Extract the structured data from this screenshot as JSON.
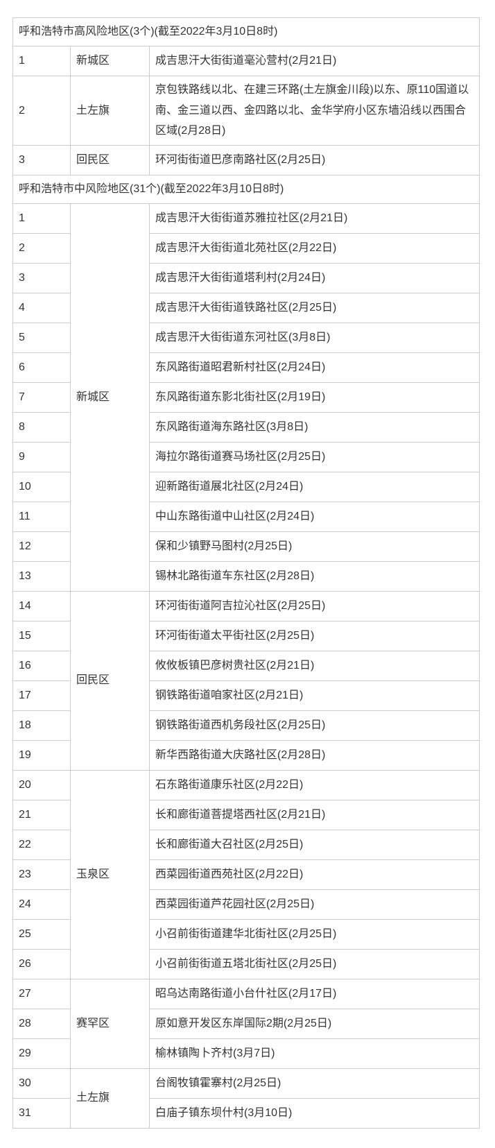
{
  "page": {
    "background": "#ffffff"
  },
  "table": {
    "border_color": "#cccccc",
    "text_color": "#333333",
    "sections": [
      {
        "header": "呼和浩特市高风险地区(3个)(截至2022年3月10日8时)",
        "groups": [
          {
            "district": "新城区",
            "rows": [
              {
                "num": "1",
                "area": "成吉思汗大街街道毫沁营村(2月21日)"
              }
            ]
          },
          {
            "district": "土左旗",
            "rows": [
              {
                "num": "2",
                "area": "京包铁路线以北、在建三环路(土左旗金川段)以东、原110国道以南、金三道以西、金四路以北、金华学府小区东墙沿线以西围合区域(2月28日)"
              }
            ]
          },
          {
            "district": "回民区",
            "rows": [
              {
                "num": "3",
                "area": "环河街街道巴彦南路社区(2月25日)"
              }
            ]
          }
        ]
      },
      {
        "header": "呼和浩特市中风险地区(31个)(截至2022年3月10日8时)",
        "groups": [
          {
            "district": "新城区",
            "rows": [
              {
                "num": "1",
                "area": "成吉思汗大街街道苏雅拉社区(2月21日)"
              },
              {
                "num": "2",
                "area": "成吉思汗大街街道北苑社区(2月22日)"
              },
              {
                "num": "3",
                "area": "成吉思汗大街街道塔利村(2月24日)"
              },
              {
                "num": "4",
                "area": "成吉思汗大街街道铁路社区(2月25日)"
              },
              {
                "num": "5",
                "area": "成吉思汗大街街道东河社区(3月8日)"
              },
              {
                "num": "6",
                "area": "东风路街道昭君新村社区(2月24日)"
              },
              {
                "num": "7",
                "area": "东风路街道东影北街社区(2月19日)"
              },
              {
                "num": "8",
                "area": "东风路街道海东路社区(3月8日)"
              },
              {
                "num": "9",
                "area": "海拉尔路街道赛马场社区(2月25日)"
              },
              {
                "num": "10",
                "area": "迎新路街道展北社区(2月24日)"
              },
              {
                "num": "11",
                "area": "中山东路街道中山社区(2月24日)"
              },
              {
                "num": "12",
                "area": "保和少镇野马图村(2月25日)"
              },
              {
                "num": "13",
                "area": "锡林北路街道车东社区(2月28日)"
              }
            ]
          },
          {
            "district": "回民区",
            "rows": [
              {
                "num": "14",
                "area": "环河街街道阿吉拉沁社区(2月25日)"
              },
              {
                "num": "15",
                "area": "环河街街道太平街社区(2月25日)"
              },
              {
                "num": "16",
                "area": "攸攸板镇巴彦树贵社区(2月21日)"
              },
              {
                "num": "17",
                "area": "钢铁路街道咱家社区(2月21日)"
              },
              {
                "num": "18",
                "area": "钢铁路街道西机务段社区(2月25日)"
              },
              {
                "num": "19",
                "area": "新华西路街道大庆路社区(2月28日)"
              }
            ]
          },
          {
            "district": "玉泉区",
            "rows": [
              {
                "num": "20",
                "area": "石东路街道康乐社区(2月22日)"
              },
              {
                "num": "21",
                "area": "长和廊街道菩提塔西社区(2月21日)"
              },
              {
                "num": "22",
                "area": "长和廊街道大召社区(2月25日)"
              },
              {
                "num": "23",
                "area": "西菜园街道西苑社区(2月22日)"
              },
              {
                "num": "24",
                "area": "西菜园街道芦花园社区(2月25日)"
              },
              {
                "num": "25",
                "area": "小召前街街道建华北街社区(2月25日)"
              },
              {
                "num": "26",
                "area": "小召前街街道五塔北街社区(2月25日)"
              }
            ]
          },
          {
            "district": "赛罕区",
            "rows": [
              {
                "num": "27",
                "area": "昭乌达南路街道小台什社区(2月17日)"
              },
              {
                "num": "28",
                "area": "原如意开发区东岸国际2期(2月25日)"
              },
              {
                "num": "29",
                "area": "榆林镇陶卜齐村(3月7日)"
              }
            ]
          },
          {
            "district": "土左旗",
            "rows": [
              {
                "num": "30",
                "area": "台阁牧镇霍寨村(2月25日)"
              },
              {
                "num": "31",
                "area": "白庙子镇东坝什村(3月10日)"
              }
            ]
          }
        ]
      }
    ]
  }
}
